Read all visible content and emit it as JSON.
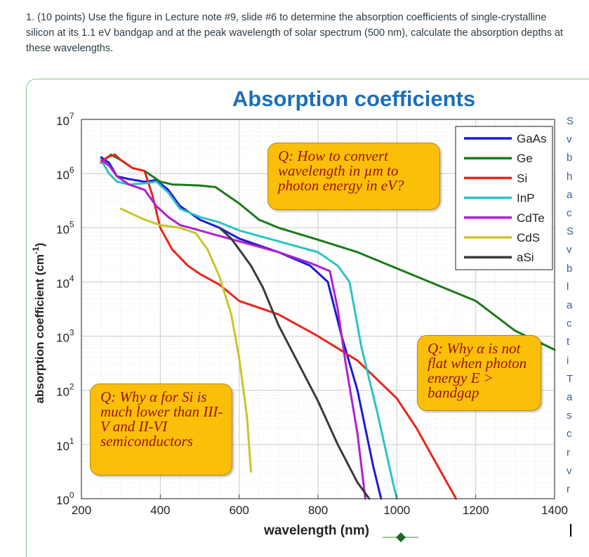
{
  "question": {
    "text": "1. (10 points) Use the figure in Lecture note #9, slide #6 to determine the absorption coefficients of single-crystalline silicon at its 1.1 eV bandgap and at the peak wavelength of solar spectrum (500 nm), calculate the absorption depths at these wavelengths."
  },
  "slide": {
    "title": "Absorption coefficients",
    "callout_convert": "Q: How to convert wavelength in µm to photon energy in eV?",
    "callout_si": "Q: Why α for Si is much lower than III-V and II-VI semiconductors",
    "callout_flat": "Q: Why α is not flat when photon energy E > bandgap",
    "side_text_letters": [
      "S",
      "v",
      "b",
      "h",
      "a",
      "c",
      "S",
      "v",
      "b",
      "l",
      "a",
      "c",
      "t",
      "i",
      "T",
      "a",
      "s",
      "c",
      "r",
      "v",
      "r"
    ]
  },
  "colors": {
    "title": "#1d6fb8",
    "GaAs": "#1a1ad6",
    "Ge": "#1a7a1a",
    "Si": "#e8251c",
    "InP": "#2ec2c6",
    "CdTe": "#b01fd0",
    "CdS": "#c6c62a",
    "aSi": "#3a3a3a"
  },
  "chart_data": {
    "type": "line",
    "title": "Absorption coefficients",
    "xlabel": "wavelength (nm)",
    "ylabel": "absorption coefficient (cm-1)",
    "xlim": [
      200,
      1400
    ],
    "ylim_log10": [
      0,
      7
    ],
    "x_ticks": [
      "200",
      "400",
      "600",
      "800",
      "1000",
      "1200",
      "1400"
    ],
    "y_tick_exponents": [
      "7",
      "6",
      "5",
      "4",
      "3",
      "2",
      "1",
      "0"
    ],
    "y_tick_base": "10",
    "grid": true,
    "legend_position": "top-right",
    "series": [
      {
        "name": "GaAs",
        "points": [
          [
            250,
            6.3
          ],
          [
            270,
            6.2
          ],
          [
            290,
            5.95
          ],
          [
            320,
            5.9
          ],
          [
            360,
            5.85
          ],
          [
            390,
            5.88
          ],
          [
            420,
            5.7
          ],
          [
            450,
            5.4
          ],
          [
            500,
            5.15
          ],
          [
            550,
            5.0
          ],
          [
            600,
            4.8
          ],
          [
            700,
            4.55
          ],
          [
            780,
            4.3
          ],
          [
            825,
            4.0
          ],
          [
            860,
            3.0
          ],
          [
            900,
            2.0
          ],
          [
            940,
            0.6
          ],
          [
            960,
            0.0
          ]
        ]
      },
      {
        "name": "Ge",
        "points": [
          [
            250,
            6.2
          ],
          [
            275,
            6.35
          ],
          [
            300,
            6.25
          ],
          [
            330,
            6.1
          ],
          [
            360,
            6.05
          ],
          [
            400,
            5.85
          ],
          [
            430,
            5.8
          ],
          [
            500,
            5.78
          ],
          [
            540,
            5.75
          ],
          [
            570,
            5.6
          ],
          [
            600,
            5.45
          ],
          [
            650,
            5.15
          ],
          [
            700,
            5.0
          ],
          [
            800,
            4.78
          ],
          [
            900,
            4.55
          ],
          [
            1000,
            4.25
          ],
          [
            1100,
            3.95
          ],
          [
            1200,
            3.65
          ],
          [
            1300,
            3.1
          ],
          [
            1400,
            2.75
          ]
        ]
      },
      {
        "name": "Si",
        "points": [
          [
            250,
            6.2
          ],
          [
            265,
            6.3
          ],
          [
            285,
            6.35
          ],
          [
            300,
            6.25
          ],
          [
            330,
            6.1
          ],
          [
            360,
            6.05
          ],
          [
            380,
            5.6
          ],
          [
            400,
            5.0
          ],
          [
            430,
            4.6
          ],
          [
            470,
            4.3
          ],
          [
            500,
            4.15
          ],
          [
            550,
            3.95
          ],
          [
            600,
            3.65
          ],
          [
            700,
            3.4
          ],
          [
            800,
            3.0
          ],
          [
            900,
            2.55
          ],
          [
            950,
            2.2
          ],
          [
            1000,
            1.85
          ],
          [
            1050,
            1.3
          ],
          [
            1100,
            0.65
          ],
          [
            1150,
            0.0
          ]
        ]
      },
      {
        "name": "InP",
        "points": [
          [
            250,
            6.25
          ],
          [
            270,
            6.0
          ],
          [
            290,
            5.85
          ],
          [
            320,
            5.8
          ],
          [
            360,
            5.82
          ],
          [
            390,
            5.85
          ],
          [
            420,
            5.65
          ],
          [
            450,
            5.35
          ],
          [
            500,
            5.2
          ],
          [
            550,
            5.1
          ],
          [
            600,
            4.95
          ],
          [
            700,
            4.75
          ],
          [
            800,
            4.55
          ],
          [
            850,
            4.3
          ],
          [
            880,
            4.0
          ],
          [
            910,
            2.8
          ],
          [
            950,
            1.6
          ],
          [
            990,
            0.3
          ],
          [
            1000,
            0.0
          ]
        ]
      },
      {
        "name": "CdTe",
        "points": [
          [
            250,
            6.25
          ],
          [
            270,
            6.15
          ],
          [
            290,
            5.95
          ],
          [
            320,
            5.8
          ],
          [
            360,
            5.7
          ],
          [
            390,
            5.4
          ],
          [
            420,
            5.2
          ],
          [
            450,
            5.05
          ],
          [
            500,
            4.95
          ],
          [
            550,
            4.85
          ],
          [
            600,
            4.75
          ],
          [
            700,
            4.55
          ],
          [
            780,
            4.35
          ],
          [
            830,
            4.2
          ],
          [
            850,
            3.5
          ],
          [
            870,
            2.5
          ],
          [
            900,
            1.2
          ],
          [
            920,
            0.0
          ]
        ]
      },
      {
        "name": "CdS",
        "points": [
          [
            300,
            5.35
          ],
          [
            330,
            5.25
          ],
          [
            360,
            5.15
          ],
          [
            400,
            5.05
          ],
          [
            450,
            5.0
          ],
          [
            490,
            4.9
          ],
          [
            520,
            4.6
          ],
          [
            550,
            4.1
          ],
          [
            580,
            3.4
          ],
          [
            600,
            2.6
          ],
          [
            620,
            1.5
          ],
          [
            630,
            0.5
          ]
        ]
      },
      {
        "name": "aSi",
        "points": [
          [
            550,
            5.0
          ],
          [
            580,
            4.8
          ],
          [
            600,
            4.6
          ],
          [
            630,
            4.3
          ],
          [
            660,
            3.9
          ],
          [
            700,
            3.2
          ],
          [
            750,
            2.5
          ],
          [
            800,
            1.8
          ],
          [
            850,
            1.0
          ],
          [
            900,
            0.3
          ],
          [
            930,
            0.0
          ]
        ]
      }
    ]
  }
}
